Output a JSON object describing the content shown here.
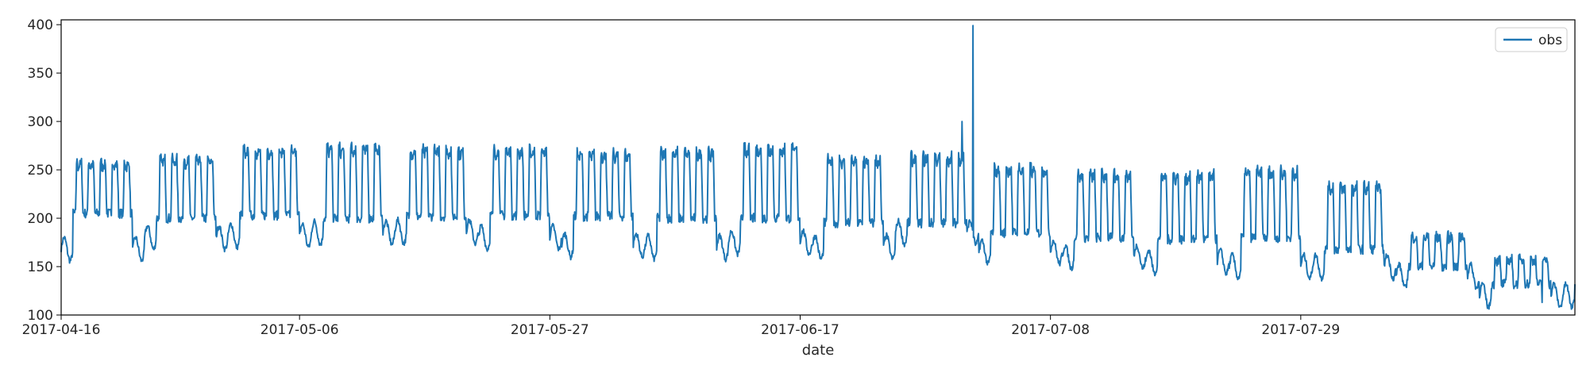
{
  "chart_data": {
    "type": "line",
    "xlabel": "date",
    "ylabel": "",
    "x_type": "date",
    "xlim": [
      "2017-04-16",
      "2017-08-21"
    ],
    "ylim": [
      100,
      405
    ],
    "x_ticks": [
      "2017-04-16",
      "2017-05-06",
      "2017-05-27",
      "2017-06-17",
      "2017-07-08",
      "2017-07-29"
    ],
    "y_ticks": [
      100,
      150,
      200,
      250,
      300,
      350,
      400
    ],
    "grid": false,
    "legend": {
      "position": "top-right",
      "entries": [
        "obs"
      ]
    },
    "series": [
      {
        "name": "obs",
        "color": "#1f77b4",
        "sampling": "hourly",
        "weeks": [
          {
            "start": "2017-04-16",
            "weekday_peak": 258,
            "weekday_base": 205,
            "weekend_base": 168
          },
          {
            "start": "2017-04-23",
            "weekday_peak": 262,
            "weekday_base": 200,
            "weekend_base": 180
          },
          {
            "start": "2017-04-30",
            "weekday_peak": 272,
            "weekday_base": 203,
            "weekend_base": 182
          },
          {
            "start": "2017-05-07",
            "weekday_peak": 274,
            "weekday_base": 200,
            "weekend_base": 185
          },
          {
            "start": "2017-05-14",
            "weekday_peak": 272,
            "weekday_base": 202,
            "weekend_base": 186
          },
          {
            "start": "2017-05-21",
            "weekday_peak": 272,
            "weekday_base": 203,
            "weekend_base": 180
          },
          {
            "start": "2017-05-28",
            "weekday_peak": 268,
            "weekday_base": 202,
            "weekend_base": 172
          },
          {
            "start": "2017-06-04",
            "weekday_peak": 270,
            "weekday_base": 200,
            "weekend_base": 170
          },
          {
            "start": "2017-06-11",
            "weekday_peak": 274,
            "weekday_base": 200,
            "weekend_base": 175
          },
          {
            "start": "2017-06-18",
            "weekday_peak": 262,
            "weekday_base": 195,
            "weekend_base": 170
          },
          {
            "start": "2017-06-25",
            "weekday_peak": 265,
            "weekday_base": 195,
            "weekend_base": 185
          },
          {
            "start": "2017-07-02",
            "weekday_peak": 253,
            "weekday_base": 185,
            "weekend_base": 165
          },
          {
            "start": "2017-07-09",
            "weekday_peak": 247,
            "weekday_base": 180,
            "weekend_base": 160
          },
          {
            "start": "2017-07-16",
            "weekday_peak": 246,
            "weekday_base": 178,
            "weekend_base": 155
          },
          {
            "start": "2017-07-23",
            "weekday_peak": 250,
            "weekday_base": 180,
            "weekend_base": 150
          },
          {
            "start": "2017-07-30",
            "weekday_peak": 234,
            "weekday_base": 168,
            "weekend_base": 150
          },
          {
            "start": "2017-08-06",
            "weekday_peak": 182,
            "weekday_base": 150,
            "weekend_base": 140
          },
          {
            "start": "2017-08-13",
            "weekday_peak": 158,
            "weekday_base": 132,
            "weekend_base": 120
          }
        ],
        "anomalies": [
          {
            "date": "2017-06-30T14:00",
            "value": 300
          },
          {
            "date": "2017-07-01T12:00",
            "value": 399
          },
          {
            "date": "2017-08-18T06:00",
            "value": 113
          }
        ],
        "range": {
          "start": "2017-04-16",
          "end": "2017-08-21"
        }
      }
    ]
  }
}
